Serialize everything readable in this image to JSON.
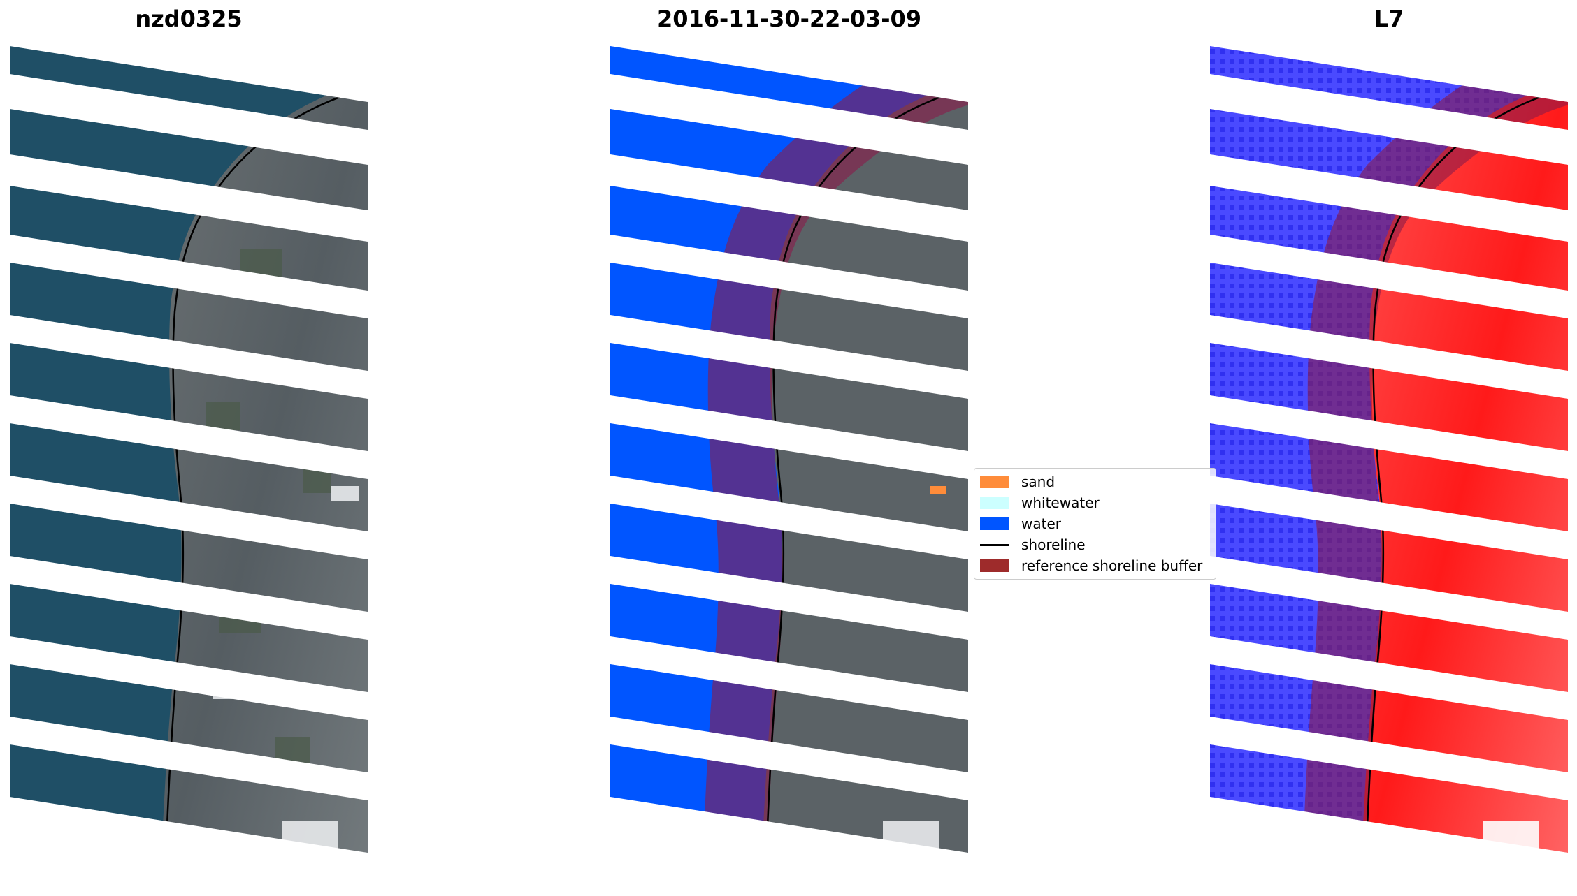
{
  "panels": {
    "left_title": "nzd0325",
    "middle_title": "2016-11-30-22-03-09",
    "right_title": "L7"
  },
  "legend": {
    "items": [
      {
        "label": "sand",
        "kind": "patch",
        "color": "#ff8c3a"
      },
      {
        "label": "whitewater",
        "kind": "patch",
        "color": "#ccffff"
      },
      {
        "label": "water",
        "kind": "patch",
        "color": "#0055ff"
      },
      {
        "label": "shoreline",
        "kind": "line",
        "color": "#000000"
      },
      {
        "label": "reference shoreline buffer",
        "kind": "patch",
        "color": "#9e2b2b"
      }
    ]
  },
  "colors": {
    "sea_rgb": "#1f4f66",
    "land_rgb": "#5d656b",
    "water_class": "#0055ff",
    "buffer_overlay": "#8b1a4a",
    "index_negative": "#3535ff",
    "index_positive": "#ff2a2a"
  }
}
